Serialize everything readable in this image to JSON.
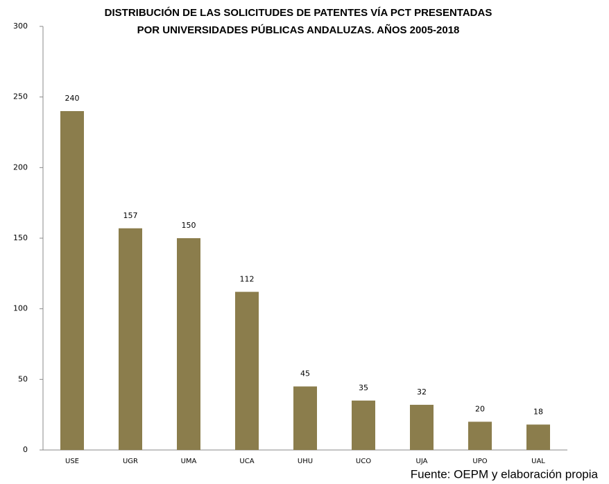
{
  "chart_data": {
    "type": "bar",
    "title": [
      "DISTRIBUCIÓN DE LAS SOLICITUDES DE PATENTES VÍA PCT PRESENTADAS",
      "POR UNIVERSIDADES PÚBLICAS ANDALUZAS. AÑOS 2005-2018"
    ],
    "categories": [
      "USE",
      "UGR",
      "UMA",
      "UCA",
      "UHU",
      "UCO",
      "UJA",
      "UPO",
      "UAL"
    ],
    "values": [
      240,
      157,
      150,
      112,
      45,
      35,
      32,
      20,
      18
    ],
    "color": "#8b7d4c",
    "ylim": [
      0,
      300
    ],
    "yticks": [
      0,
      50,
      100,
      150,
      200,
      250,
      300
    ],
    "grid": false,
    "source": "Fuente: OEPM y elaboración propia"
  }
}
